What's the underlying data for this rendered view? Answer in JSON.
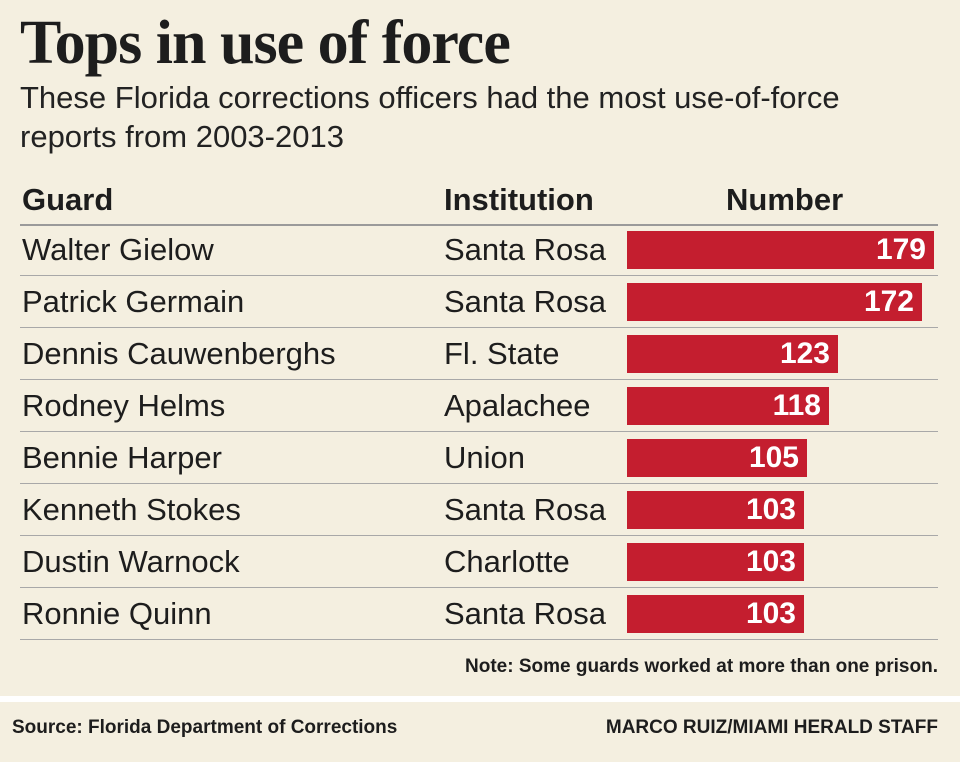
{
  "title": "Tops in use of force",
  "subtitle": "These Florida corrections officers had the most use-of-force reports from 2003-2013",
  "columns": {
    "guard": "Guard",
    "institution": "Institution",
    "number": "Number"
  },
  "chart_data": {
    "type": "bar",
    "orientation": "horizontal",
    "title": "Tops in use of force",
    "subtitle": "These Florida corrections officers had the most use-of-force reports from 2003-2013",
    "xlabel": "Number",
    "ylabel": "Guard",
    "xlim": [
      0,
      179
    ],
    "grid": false,
    "categories": [
      "Walter Gielow",
      "Patrick Germain",
      "Dennis Cauwenberghs",
      "Rodney Helms",
      "Bennie Harper",
      "Kenneth Stokes",
      "Dustin Warnock",
      "Ronnie Quinn"
    ],
    "institutions": [
      "Santa Rosa",
      "Santa Rosa",
      "Fl. State",
      "Apalachee",
      "Union",
      "Santa Rosa",
      "Charlotte",
      "Santa Rosa"
    ],
    "values": [
      179,
      172,
      123,
      118,
      105,
      103,
      103,
      103
    ],
    "bar_color": "#c41e2f"
  },
  "note": "Note: Some guards worked at more than one prison.",
  "source": "Source: Florida Department of Corrections",
  "credit": "MARCO RUIZ/MIAMI HERALD STAFF",
  "colors": {
    "background": "#f4efe0",
    "bar": "#c41e2f",
    "text": "#1d1d1d"
  }
}
